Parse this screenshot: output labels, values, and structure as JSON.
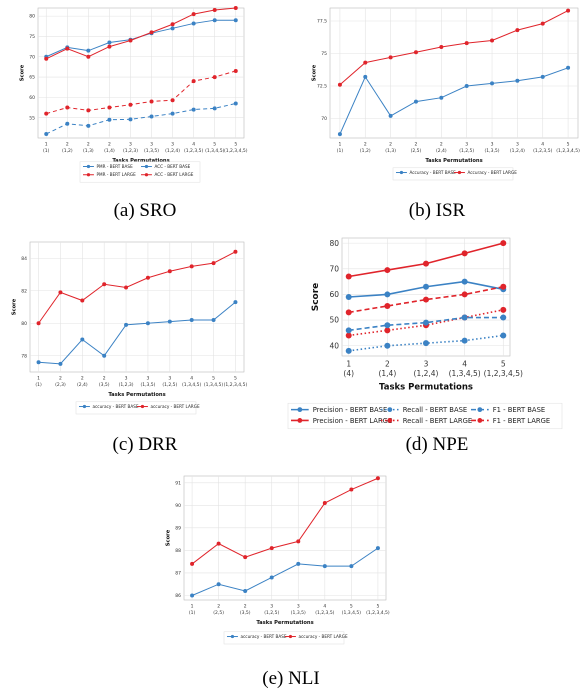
{
  "colors": {
    "base": "#3b82c4",
    "large": "#e0242b"
  },
  "chart_data": [
    {
      "id": "sro",
      "type": "line",
      "caption": "(a) SRO",
      "ylabel": "Score",
      "xlabel": "Tasks Permutations",
      "ylim": [
        50,
        82
      ],
      "yticks": [
        55,
        60,
        65,
        70,
        75,
        80
      ],
      "categories": [
        "1\n(1)",
        "2\n(1,2)",
        "2\n(1,3)",
        "2\n(1,4)",
        "3\n(1,2,3)",
        "3\n(1,3,5)",
        "3\n(1,2,4)",
        "4\n(1,2,3,5)",
        "5\n(1,3,4,5)",
        "5\n(1,2,3,4,5)"
      ],
      "grid": true,
      "legend": [
        "PMR - BERT BASE",
        "ACC - BERT BASE",
        "PMR - BERT LARGE",
        "ACC - BERT LARGE"
      ],
      "series": [
        {
          "name": "PMR - BERT BASE",
          "color": "base",
          "dash": "4,3",
          "values": [
            51.0,
            53.5,
            53.0,
            54.5,
            54.6,
            55.3,
            56.0,
            57.0,
            57.3,
            58.5
          ]
        },
        {
          "name": "ACC - BERT BASE",
          "color": "base",
          "dash": "",
          "values": [
            70.0,
            72.3,
            71.5,
            73.5,
            74.2,
            75.8,
            77.0,
            78.2,
            79.0,
            79.0
          ]
        },
        {
          "name": "PMR - BERT LARGE",
          "color": "large",
          "dash": "4,3",
          "values": [
            56.0,
            57.5,
            56.8,
            57.5,
            58.2,
            59.0,
            59.3,
            64.0,
            65.0,
            66.5
          ]
        },
        {
          "name": "ACC - BERT LARGE",
          "color": "large",
          "dash": "",
          "values": [
            69.5,
            72.0,
            70.0,
            72.5,
            74.0,
            76.0,
            78.0,
            80.5,
            81.5,
            82.0
          ]
        }
      ]
    },
    {
      "id": "isr",
      "type": "line",
      "caption": "(b) ISR",
      "ylabel": "Score",
      "xlabel": "Tasks Permutations",
      "ylim": [
        68.5,
        78.5
      ],
      "yticks": [
        70,
        72.5,
        75,
        77.5
      ],
      "categories": [
        "1\n(1)",
        "2\n(1,2)",
        "2\n(1,3)",
        "2\n(2,5)",
        "2\n(2,4)",
        "3\n(1,2,5)",
        "3\n(1,3,5)",
        "3\n(1,2,4)",
        "4\n(1,2,3,5)",
        "5\n(1,2,3,4,5)"
      ],
      "grid": true,
      "legend": [
        "Accuracy - BERT BASE",
        "Accuracy - BERT LARGE"
      ],
      "series": [
        {
          "name": "Accuracy - BERT BASE",
          "color": "base",
          "dash": "",
          "values": [
            68.8,
            73.2,
            70.2,
            71.3,
            71.6,
            72.5,
            72.7,
            72.9,
            73.2,
            73.9
          ]
        },
        {
          "name": "Accuracy - BERT LARGE",
          "color": "large",
          "dash": "",
          "values": [
            72.6,
            74.3,
            74.7,
            75.1,
            75.5,
            75.8,
            76.0,
            76.8,
            77.3,
            78.3
          ]
        }
      ]
    },
    {
      "id": "drr",
      "type": "line",
      "caption": "(c) DRR",
      "ylabel": "Score",
      "xlabel": "Tasks Permutations",
      "ylim": [
        77.0,
        85.0
      ],
      "yticks": [
        78,
        80,
        82,
        84
      ],
      "categories": [
        "1\n(1)",
        "2\n(2,3)",
        "2\n(2,4)",
        "2\n(3,5)",
        "3\n(1,2,3)",
        "3\n(1,3,5)",
        "3\n(1,2,5)",
        "4\n(1,3,4,5)",
        "5\n(1,3,4,5)",
        "5\n(1,2,3,4,5)"
      ],
      "grid": true,
      "legend": [
        "accuracy - BERT BASE",
        "accuracy - BERT LARGE"
      ],
      "series": [
        {
          "name": "accuracy - BERT BASE",
          "color": "base",
          "dash": "",
          "values": [
            77.6,
            77.5,
            79.0,
            78.0,
            79.9,
            80.0,
            80.1,
            80.2,
            80.2,
            81.3
          ]
        },
        {
          "name": "accuracy - BERT LARGE",
          "color": "large",
          "dash": "",
          "values": [
            80.0,
            81.9,
            81.4,
            82.4,
            82.2,
            82.8,
            83.2,
            83.5,
            83.7,
            84.4
          ]
        }
      ]
    },
    {
      "id": "npe",
      "type": "line",
      "caption": "(d) NPE",
      "ylabel": "Score",
      "xlabel": "Tasks Permutations",
      "ylim": [
        36,
        82
      ],
      "yticks": [
        40,
        50,
        60,
        70,
        80
      ],
      "categories": [
        "1\n(4)",
        "2\n(1,4)",
        "3\n(1,2,4)",
        "4\n(1,3,4,5)",
        "5\n(1,2,3,4,5)"
      ],
      "grid": true,
      "legend": [
        "Precision - BERT BASE",
        "Precision - BERT LARGE",
        "Recall - BERT BASE",
        "Recall - BERT LARGE",
        "F1 - BERT BASE",
        "F1 - BERT LARGE"
      ],
      "series": [
        {
          "name": "Precision - BERT BASE",
          "color": "base",
          "dash": "",
          "values": [
            59,
            60,
            63,
            65,
            62
          ]
        },
        {
          "name": "Precision - BERT LARGE",
          "color": "large",
          "dash": "",
          "values": [
            67,
            69.5,
            72,
            76,
            80
          ]
        },
        {
          "name": "Recall - BERT BASE",
          "color": "base",
          "dash": "1.5,2.5",
          "values": [
            38,
            40,
            41,
            42,
            44
          ]
        },
        {
          "name": "Recall - BERT LARGE",
          "color": "large",
          "dash": "1.5,2.5",
          "values": [
            44,
            46,
            48,
            51,
            54
          ]
        },
        {
          "name": "F1 - BERT BASE",
          "color": "base",
          "dash": "5,3",
          "values": [
            46,
            48,
            49,
            51,
            51
          ]
        },
        {
          "name": "F1 - BERT LARGE",
          "color": "large",
          "dash": "5,3",
          "values": [
            53,
            55.5,
            58,
            60,
            63
          ]
        }
      ]
    },
    {
      "id": "nli",
      "type": "line",
      "caption": "(e) NLI",
      "ylabel": "Score",
      "xlabel": "Tasks Permutations",
      "ylim": [
        85.8,
        91.3
      ],
      "yticks": [
        86,
        87,
        88,
        89,
        90,
        91
      ],
      "categories": [
        "1\n(1)",
        "2\n(2,5)",
        "2\n(3,5)",
        "3\n(1,2,5)",
        "3\n(1,3,5)",
        "4\n(1,2,3,5)",
        "5\n(1,3,4,5)",
        "5\n(1,2,3,4,5)"
      ],
      "grid": true,
      "legend": [
        "accuracy - BERT BASE",
        "accuracy - BERT LARGE"
      ],
      "series": [
        {
          "name": "accuracy - BERT BASE",
          "color": "base",
          "dash": "",
          "values": [
            86.0,
            86.5,
            86.2,
            86.8,
            87.4,
            87.3,
            87.3,
            88.1
          ]
        },
        {
          "name": "accuracy - BERT LARGE",
          "color": "large",
          "dash": "",
          "values": [
            87.4,
            88.3,
            87.7,
            88.1,
            88.4,
            90.1,
            90.7,
            91.2
          ]
        }
      ]
    }
  ]
}
